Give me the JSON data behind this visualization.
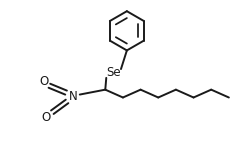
{
  "background_color": "#ffffff",
  "line_color": "#1a1a1a",
  "line_width": 1.4,
  "font_size": 8.5,
  "figsize": [
    2.4,
    1.44
  ],
  "dpi": 100,
  "Se_label": "Se",
  "N_label": "N",
  "O_label": "O"
}
